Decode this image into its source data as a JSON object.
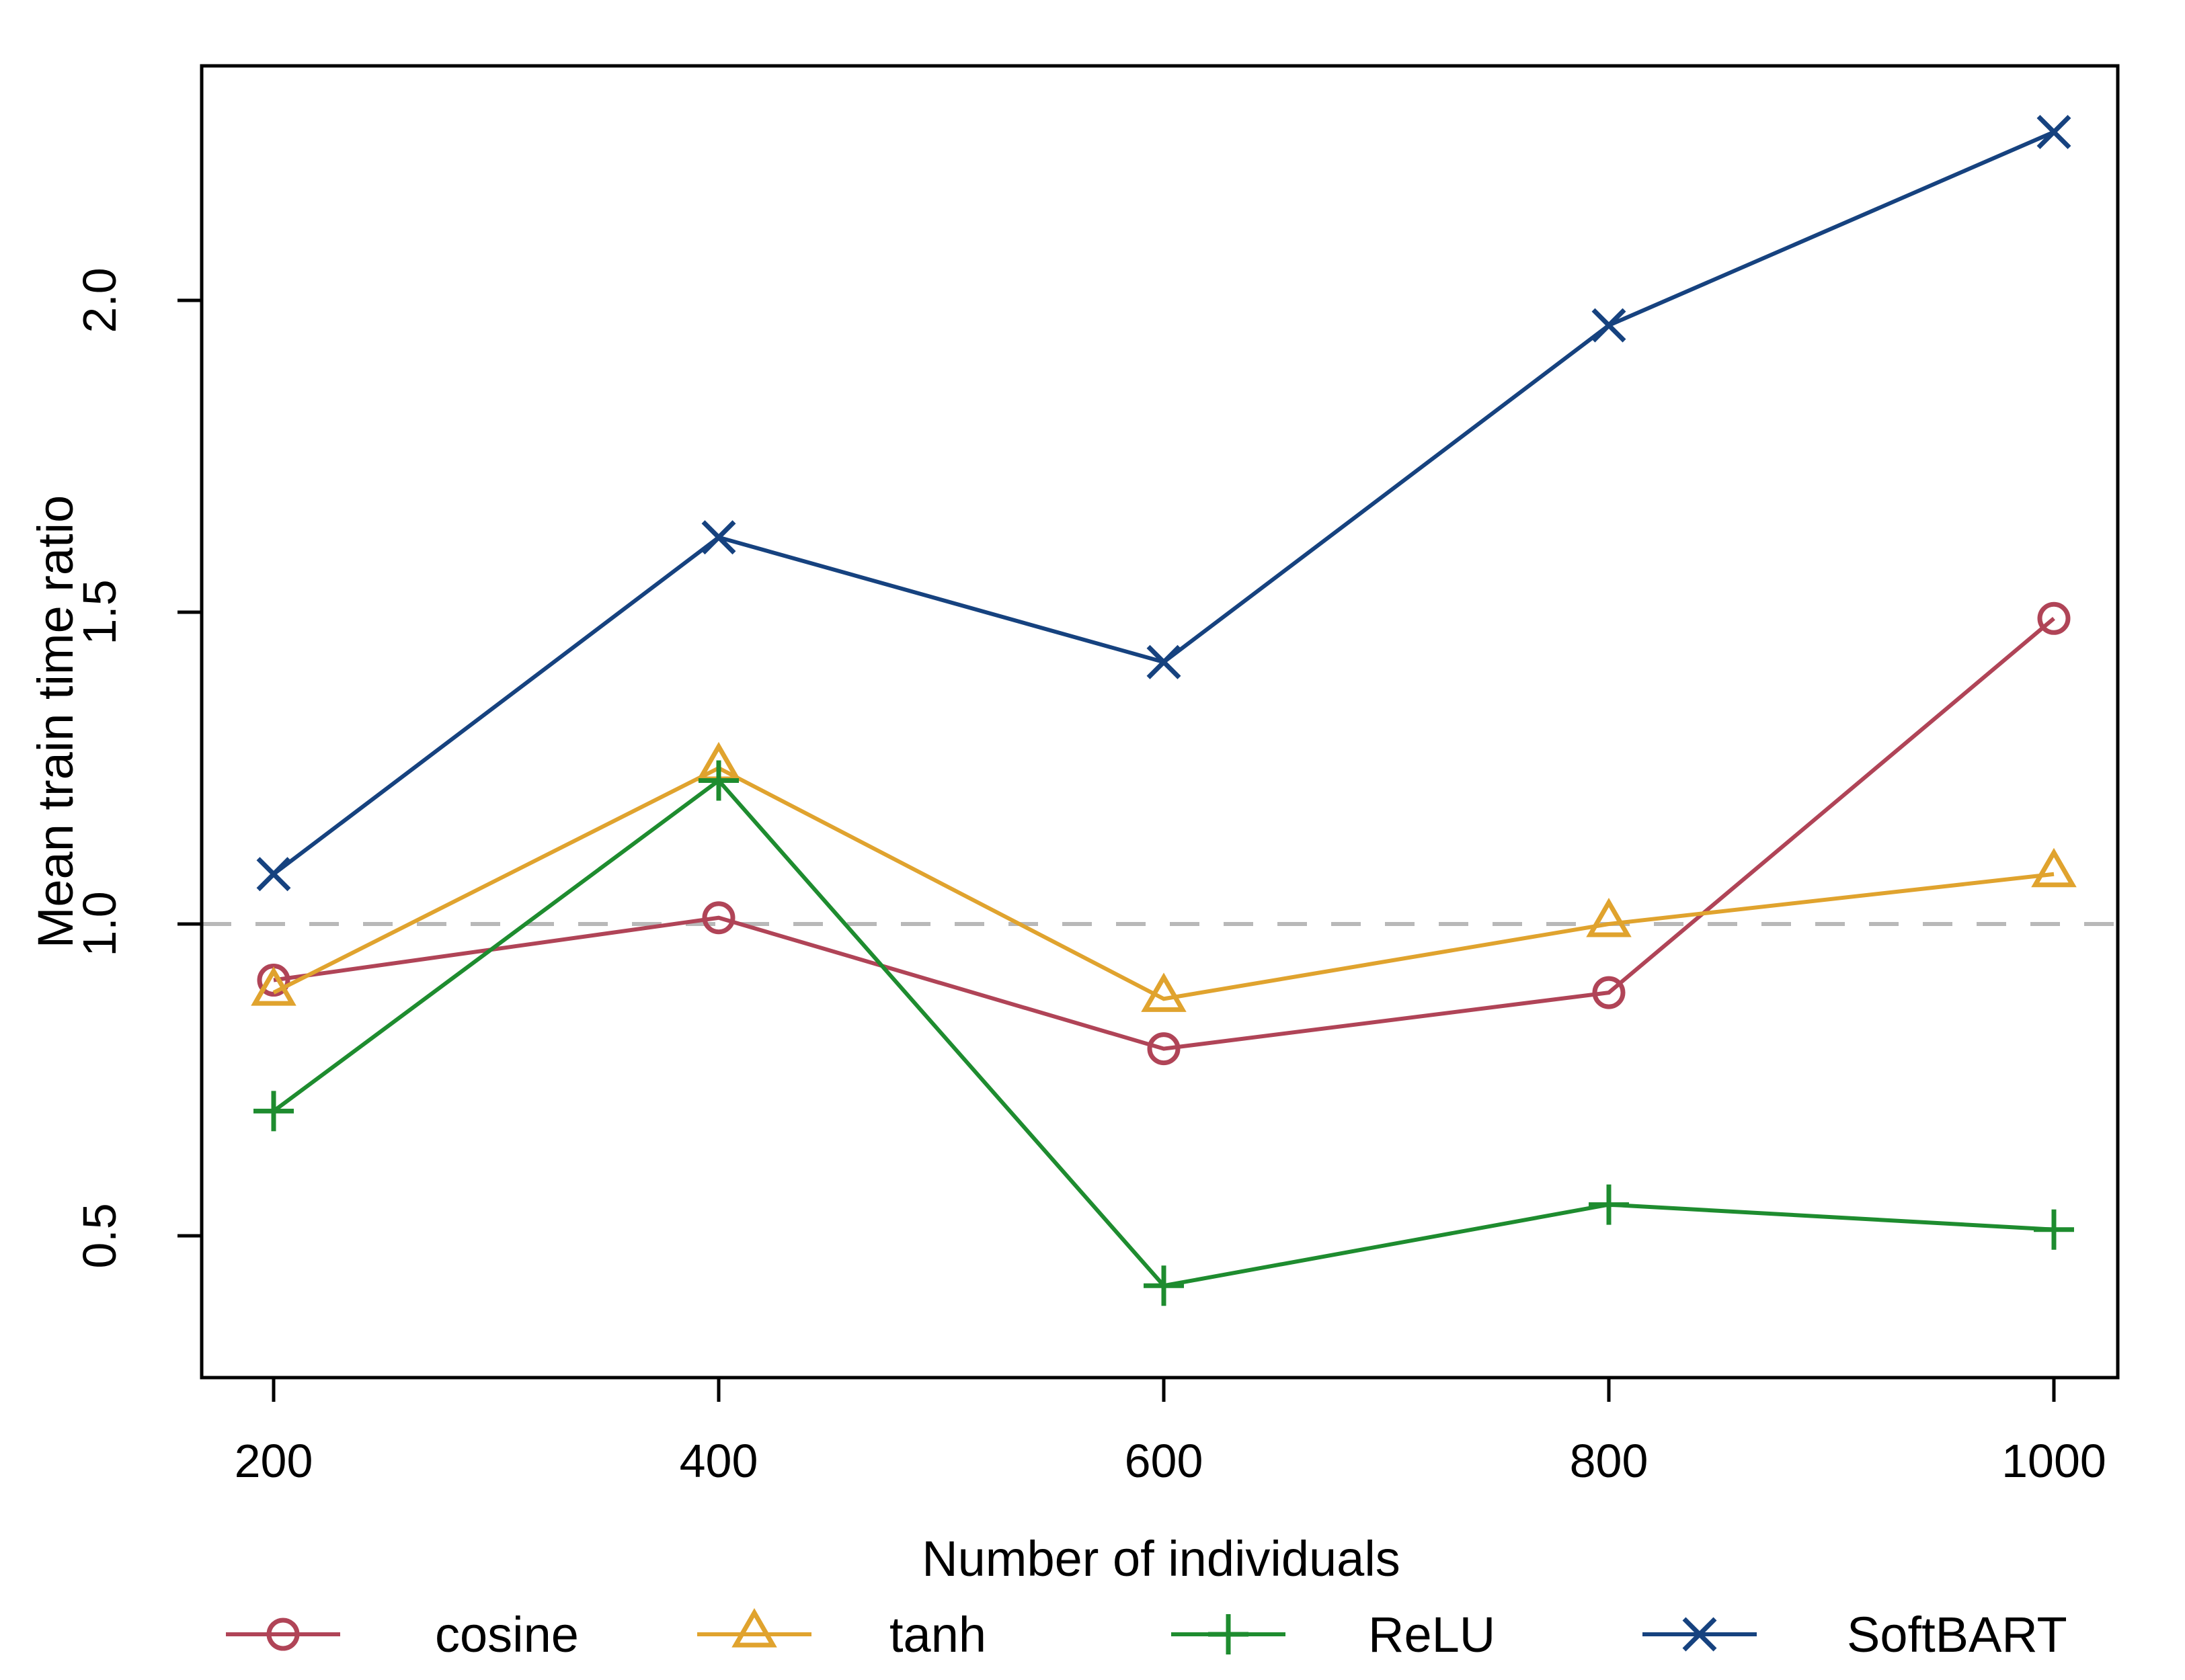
{
  "chart_data": {
    "type": "line",
    "title": "",
    "xlabel": "Number of individuals",
    "ylabel": "Mean train time ratio",
    "x": [
      200,
      400,
      600,
      800,
      1000
    ],
    "xticks": [
      200,
      400,
      600,
      800,
      1000
    ],
    "yticks": [
      0.5,
      1.0,
      1.5,
      2.0
    ],
    "ylim": [
      0.27,
      2.38
    ],
    "xlim": [
      168,
      1029
    ],
    "grid": false,
    "legend_position": "bottom",
    "reference_line": {
      "value": 1.0,
      "style": "dashed",
      "color": "#b8b8b8"
    },
    "series": [
      {
        "name": "cosine",
        "marker": "circle",
        "color": "#b04457",
        "values": [
          0.91,
          1.01,
          0.8,
          0.89,
          1.49
        ]
      },
      {
        "name": "tanh",
        "marker": "triangle",
        "color": "#e0a32e",
        "values": [
          0.89,
          1.25,
          0.88,
          1.0,
          1.08
        ]
      },
      {
        "name": "ReLU",
        "marker": "plus",
        "color": "#1e8c2f",
        "values": [
          0.7,
          1.23,
          0.42,
          0.55,
          0.51
        ]
      },
      {
        "name": "SoftBART",
        "marker": "x",
        "color": "#16427f",
        "values": [
          1.08,
          1.62,
          1.42,
          1.96,
          2.27
        ]
      }
    ],
    "axis_color": "#000000",
    "background_color": "#ffffff"
  }
}
